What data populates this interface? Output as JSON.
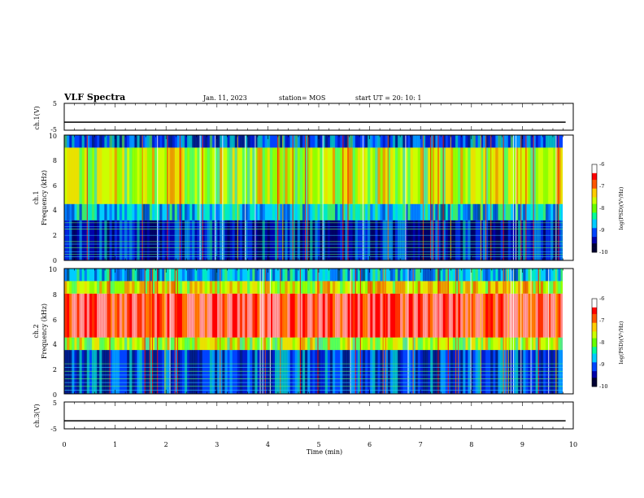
{
  "header": {
    "title": "VLF Spectra",
    "date": "Jan. 11, 2023",
    "station": "station= MOS",
    "start": "start  UT =   20: 10: 1"
  },
  "chart_data": [
    {
      "type": "line",
      "panel": "ch1_voltage",
      "ylabel": "ch.1(V)",
      "ylim": [
        -5,
        5
      ],
      "yticks": [
        "5",
        "-5"
      ],
      "xlim": [
        0,
        10
      ],
      "series": [
        {
          "x": [
            0,
            9.85
          ],
          "values": [
            -2,
            -2
          ]
        }
      ]
    },
    {
      "type": "heatmap",
      "panel": "ch1_spectrogram",
      "ylabel_top": "ch.1",
      "ylabel": "Frequency  (kHz)",
      "ylim": [
        0,
        10
      ],
      "yticks": [
        "0",
        "2",
        "4",
        "6",
        "8",
        "10"
      ],
      "xlim": [
        0,
        10
      ],
      "colorbar": {
        "label": "log(PSD)(V²/Hz)",
        "range": [
          -10,
          -6
        ],
        "ticks": [
          "-6",
          "-7",
          "-8",
          "-9",
          "-10"
        ],
        "colors": [
          "#000033",
          "#0000aa",
          "#0044ff",
          "#00ccff",
          "#00ff99",
          "#66ff00",
          "#ccff00",
          "#ffcc00",
          "#ff5500",
          "#ff0000",
          "#ffffff"
        ]
      },
      "bands": [
        {
          "fmin": 0,
          "fmax": 3.2,
          "level": -9.3
        },
        {
          "fmin": 3.2,
          "fmax": 4.5,
          "level": -8.8
        },
        {
          "fmin": 4.5,
          "fmax": 9.0,
          "level": -7.8
        },
        {
          "fmin": 9.0,
          "fmax": 10,
          "level": -9.0
        }
      ],
      "harmonic_lines_khz": [
        0.3,
        0.5,
        0.7,
        1.0,
        1.3,
        1.5,
        2.0,
        2.5,
        2.7,
        3.0
      ],
      "data_end_min": 9.85
    },
    {
      "type": "heatmap",
      "panel": "ch2_spectrogram",
      "ylabel_top": "ch.2",
      "ylabel": "Frequency  (kHz)",
      "ylim": [
        0,
        10
      ],
      "yticks": [
        "0",
        "2",
        "4",
        "6",
        "8",
        "10"
      ],
      "xlim": [
        0,
        10
      ],
      "colorbar": {
        "label": "log(PSD)(V²/Hz)",
        "range": [
          -10,
          -6
        ],
        "ticks": [
          "-6",
          "-7",
          "-8",
          "-9",
          "-10"
        ],
        "colors": [
          "#000033",
          "#0000aa",
          "#0044ff",
          "#00ccff",
          "#00ff99",
          "#66ff00",
          "#ccff00",
          "#ffcc00",
          "#ff5500",
          "#ff0000",
          "#ffffff"
        ]
      },
      "bands": [
        {
          "fmin": 0,
          "fmax": 3.5,
          "level": -9.2
        },
        {
          "fmin": 3.5,
          "fmax": 4.5,
          "level": -7.8
        },
        {
          "fmin": 4.5,
          "fmax": 8.0,
          "level": -6.5
        },
        {
          "fmin": 8.0,
          "fmax": 9.0,
          "level": -7.5
        },
        {
          "fmin": 9.0,
          "fmax": 10,
          "level": -8.8
        }
      ],
      "harmonic_lines_khz": [
        0.3,
        0.6,
        0.9,
        1.2,
        1.5,
        1.8,
        2.1,
        2.4
      ],
      "data_end_min": 9.85
    },
    {
      "type": "line",
      "panel": "ch3_voltage",
      "ylabel": "ch.3(V)",
      "ylim": [
        -5,
        5
      ],
      "yticks": [
        "5",
        "-5"
      ],
      "xlim": [
        0,
        10
      ],
      "xlabel": "Time  (min)",
      "xticks": [
        "0",
        "1",
        "2",
        "3",
        "4",
        "5",
        "6",
        "7",
        "8",
        "9",
        "10"
      ],
      "series": [
        {
          "x": [
            0,
            9.85
          ],
          "values": [
            -2,
            -2
          ]
        }
      ]
    }
  ]
}
